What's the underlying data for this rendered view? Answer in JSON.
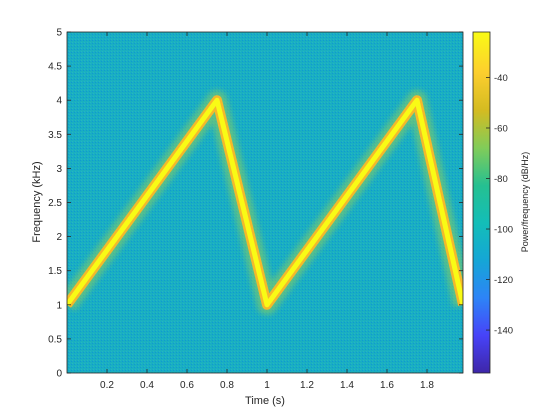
{
  "chart_data": {
    "type": "heatmap",
    "title": "",
    "xlabel": "Time (s)",
    "ylabel": "Frequency (kHz)",
    "xlim": [
      0,
      1.98
    ],
    "ylim": [
      0,
      5
    ],
    "x_ticks": [
      "0.2",
      "0.4",
      "0.6",
      "0.8",
      "1",
      "1.2",
      "1.4",
      "1.6",
      "1.8"
    ],
    "x_tick_values": [
      0.2,
      0.4,
      0.6,
      0.8,
      1.0,
      1.2,
      1.4,
      1.6,
      1.8
    ],
    "y_ticks": [
      "0",
      "0.5",
      "1",
      "1.5",
      "2",
      "2.5",
      "3",
      "3.5",
      "4",
      "4.5",
      "5"
    ],
    "y_tick_values": [
      0,
      0.5,
      1,
      1.5,
      2,
      2.5,
      3,
      3.5,
      4,
      4.5,
      5
    ],
    "ridge": {
      "name": "",
      "x": [
        0.0,
        0.75,
        1.0,
        1.75,
        1.98
      ],
      "y": [
        1.0,
        4.0,
        1.0,
        4.0,
        1.0
      ]
    },
    "background_level_db": -90,
    "ridge_level_db": -30,
    "colorbar": {
      "label": "Power/frequency (dB/Hz)",
      "range": [
        -157,
        -22
      ],
      "ticks": [
        "-40",
        "-60",
        "-80",
        "-100",
        "-120",
        "-140"
      ],
      "tick_values": [
        -40,
        -60,
        -80,
        -100,
        -120,
        -140
      ],
      "colormap": [
        "#3e26a8",
        "#4743f8",
        "#2d84f7",
        "#15a6d6",
        "#13beb8",
        "#25c091",
        "#81cc59",
        "#d4bb21",
        "#fcce2e",
        "#f9fb15"
      ]
    }
  }
}
